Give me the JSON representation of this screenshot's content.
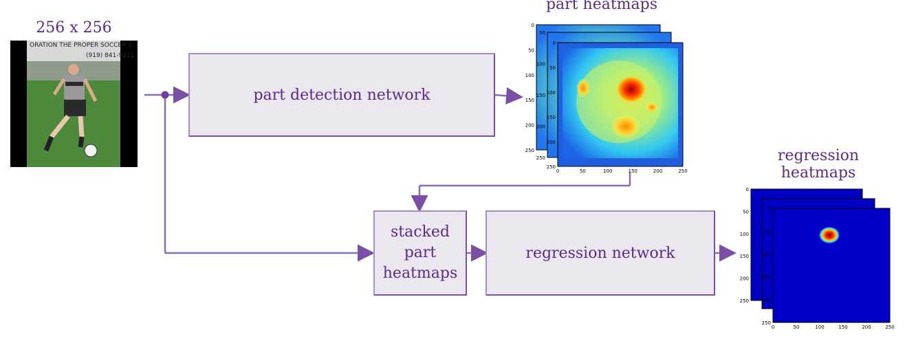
{
  "input": {
    "size_label": "256 x 256",
    "photo_banner": "ORATION  THE PROPER SOCCER S",
    "photo_phone": "(919) 841-9211"
  },
  "boxes": {
    "part_detection": "part detection network",
    "stacked_line1": "stacked",
    "stacked_line2": "part",
    "stacked_line3": "heatmaps",
    "regression": "regression network"
  },
  "outputs": {
    "part_heatmaps_title": "part heatmaps",
    "regression_heatmaps_title_line1": "regression",
    "regression_heatmaps_title_line2": "heatmaps"
  },
  "axis_ticks": {
    "y": [
      "0",
      "50",
      "100",
      "150",
      "200",
      "250"
    ],
    "x": [
      "0",
      "50",
      "100",
      "150",
      "200",
      "250"
    ]
  },
  "colors": {
    "accent": "#5b2a86",
    "arrow": "#8a6bb5",
    "box_fill": "#ebe7ef",
    "box_border": "#a58fc2"
  }
}
